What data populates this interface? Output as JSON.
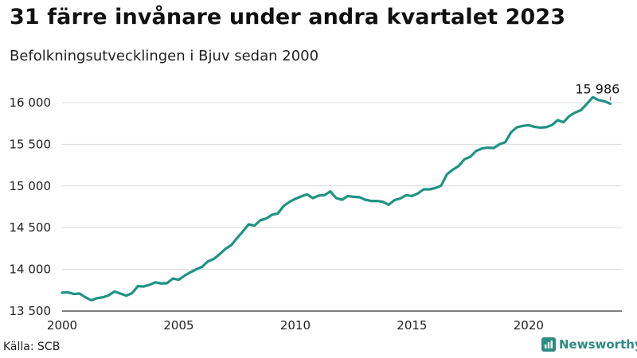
{
  "header": {
    "title": "31 färre invånare under andra kvartalet 2023",
    "subtitle": "Befolkningsutvecklingen i Bjuv sedan 2000"
  },
  "footer": {
    "source": "Källa: SCB",
    "brand": "Newsworthy"
  },
  "colors": {
    "line": "#1f9384",
    "grid": "#d9d9d9",
    "brand": "#2f8a83"
  },
  "chart_data": {
    "type": "line",
    "title": "31 färre invånare under andra kvartalet 2023",
    "subtitle": "Befolkningsutvecklingen i Bjuv sedan 2000",
    "xlim": [
      2000,
      2024
    ],
    "ylim": [
      13500,
      16200
    ],
    "x_ticks": [
      2000,
      2005,
      2010,
      2015,
      2020
    ],
    "x_tick_labels": [
      "2000",
      "2005",
      "2010",
      "2015",
      "2020"
    ],
    "y_ticks": [
      13500,
      14000,
      14500,
      15000,
      15500,
      16000
    ],
    "y_tick_labels": [
      "13 500",
      "14 000",
      "14 500",
      "15 000",
      "15 500",
      "16 000"
    ],
    "grid": true,
    "annotation": {
      "label": "15 986",
      "x": 2023.5,
      "y": 15986
    },
    "series": [
      {
        "x": [
          2000.0,
          2000.25,
          2000.5,
          2000.75,
          2001.0,
          2001.25,
          2001.5,
          2001.75,
          2002.0,
          2002.25,
          2002.5,
          2002.75,
          2003.0,
          2003.25,
          2003.5,
          2003.75,
          2004.0,
          2004.25,
          2004.5,
          2004.75,
          2005.0,
          2005.25,
          2005.5,
          2005.75,
          2006.0,
          2006.25,
          2006.5,
          2006.75,
          2007.0,
          2007.25,
          2007.5,
          2007.75,
          2008.0,
          2008.25,
          2008.5,
          2008.75,
          2009.0,
          2009.25,
          2009.5,
          2009.75,
          2010.0,
          2010.25,
          2010.5,
          2010.75,
          2011.0,
          2011.25,
          2011.5,
          2011.75,
          2012.0,
          2012.25,
          2012.5,
          2012.75,
          2013.0,
          2013.25,
          2013.5,
          2013.75,
          2014.0,
          2014.25,
          2014.5,
          2014.75,
          2015.0,
          2015.25,
          2015.5,
          2015.75,
          2016.0,
          2016.25,
          2016.5,
          2016.75,
          2017.0,
          2017.25,
          2017.5,
          2017.75,
          2018.0,
          2018.25,
          2018.5,
          2018.75,
          2019.0,
          2019.25,
          2019.5,
          2019.75,
          2020.0,
          2020.25,
          2020.5,
          2020.75,
          2021.0,
          2021.25,
          2021.5,
          2021.75,
          2022.0,
          2022.25,
          2022.5,
          2022.75,
          2023.0,
          2023.25,
          2023.5
        ],
        "y": [
          13720,
          13725,
          13705,
          13710,
          13665,
          13630,
          13655,
          13665,
          13690,
          13735,
          13710,
          13685,
          13715,
          13800,
          13795,
          13815,
          13845,
          13830,
          13835,
          13890,
          13875,
          13925,
          13965,
          14000,
          14030,
          14095,
          14125,
          14180,
          14245,
          14290,
          14375,
          14455,
          14540,
          14525,
          14590,
          14610,
          14655,
          14670,
          14760,
          14810,
          14845,
          14875,
          14900,
          14855,
          14885,
          14890,
          14935,
          14855,
          14835,
          14880,
          14870,
          14865,
          14835,
          14820,
          14820,
          14810,
          14775,
          14830,
          14850,
          14890,
          14880,
          14910,
          14960,
          14960,
          14975,
          15005,
          15140,
          15195,
          15240,
          15320,
          15350,
          15420,
          15450,
          15460,
          15455,
          15500,
          15525,
          15645,
          15705,
          15720,
          15730,
          15710,
          15700,
          15705,
          15730,
          15790,
          15765,
          15840,
          15880,
          15910,
          15985,
          16065,
          16030,
          16017,
          15986
        ]
      }
    ]
  }
}
